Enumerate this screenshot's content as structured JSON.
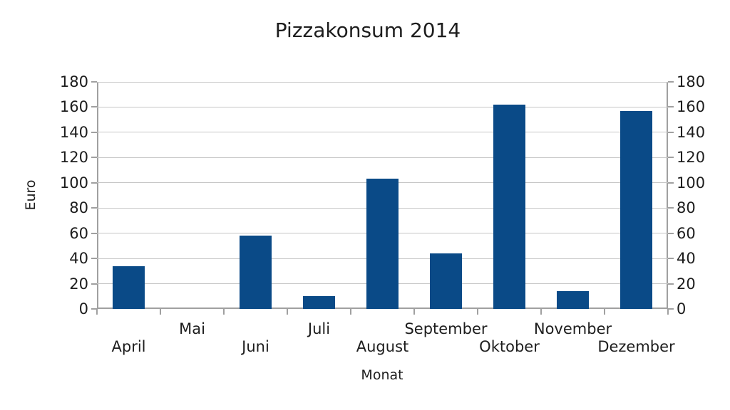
{
  "chart_data": {
    "type": "bar",
    "title": "Pizzakonsum 2014",
    "xlabel": "Monat",
    "ylabel": "Euro",
    "categories": [
      "April",
      "Mai",
      "Juni",
      "Juli",
      "August",
      "September",
      "Oktober",
      "November",
      "Dezember"
    ],
    "values": [
      34,
      0,
      58,
      10,
      103,
      44,
      162,
      14,
      157
    ],
    "ylim": [
      0,
      180
    ],
    "ytick_step": 20,
    "ytick_labels_both_sides": true,
    "grid": true,
    "legend": "none",
    "x_label_stagger": "two-rows",
    "colors": {
      "bar": "#0a4a87",
      "grid": "#c6c6c6",
      "axis": "#a0a0a0",
      "text": "#1d1d1d",
      "background": "#ffffff"
    }
  }
}
